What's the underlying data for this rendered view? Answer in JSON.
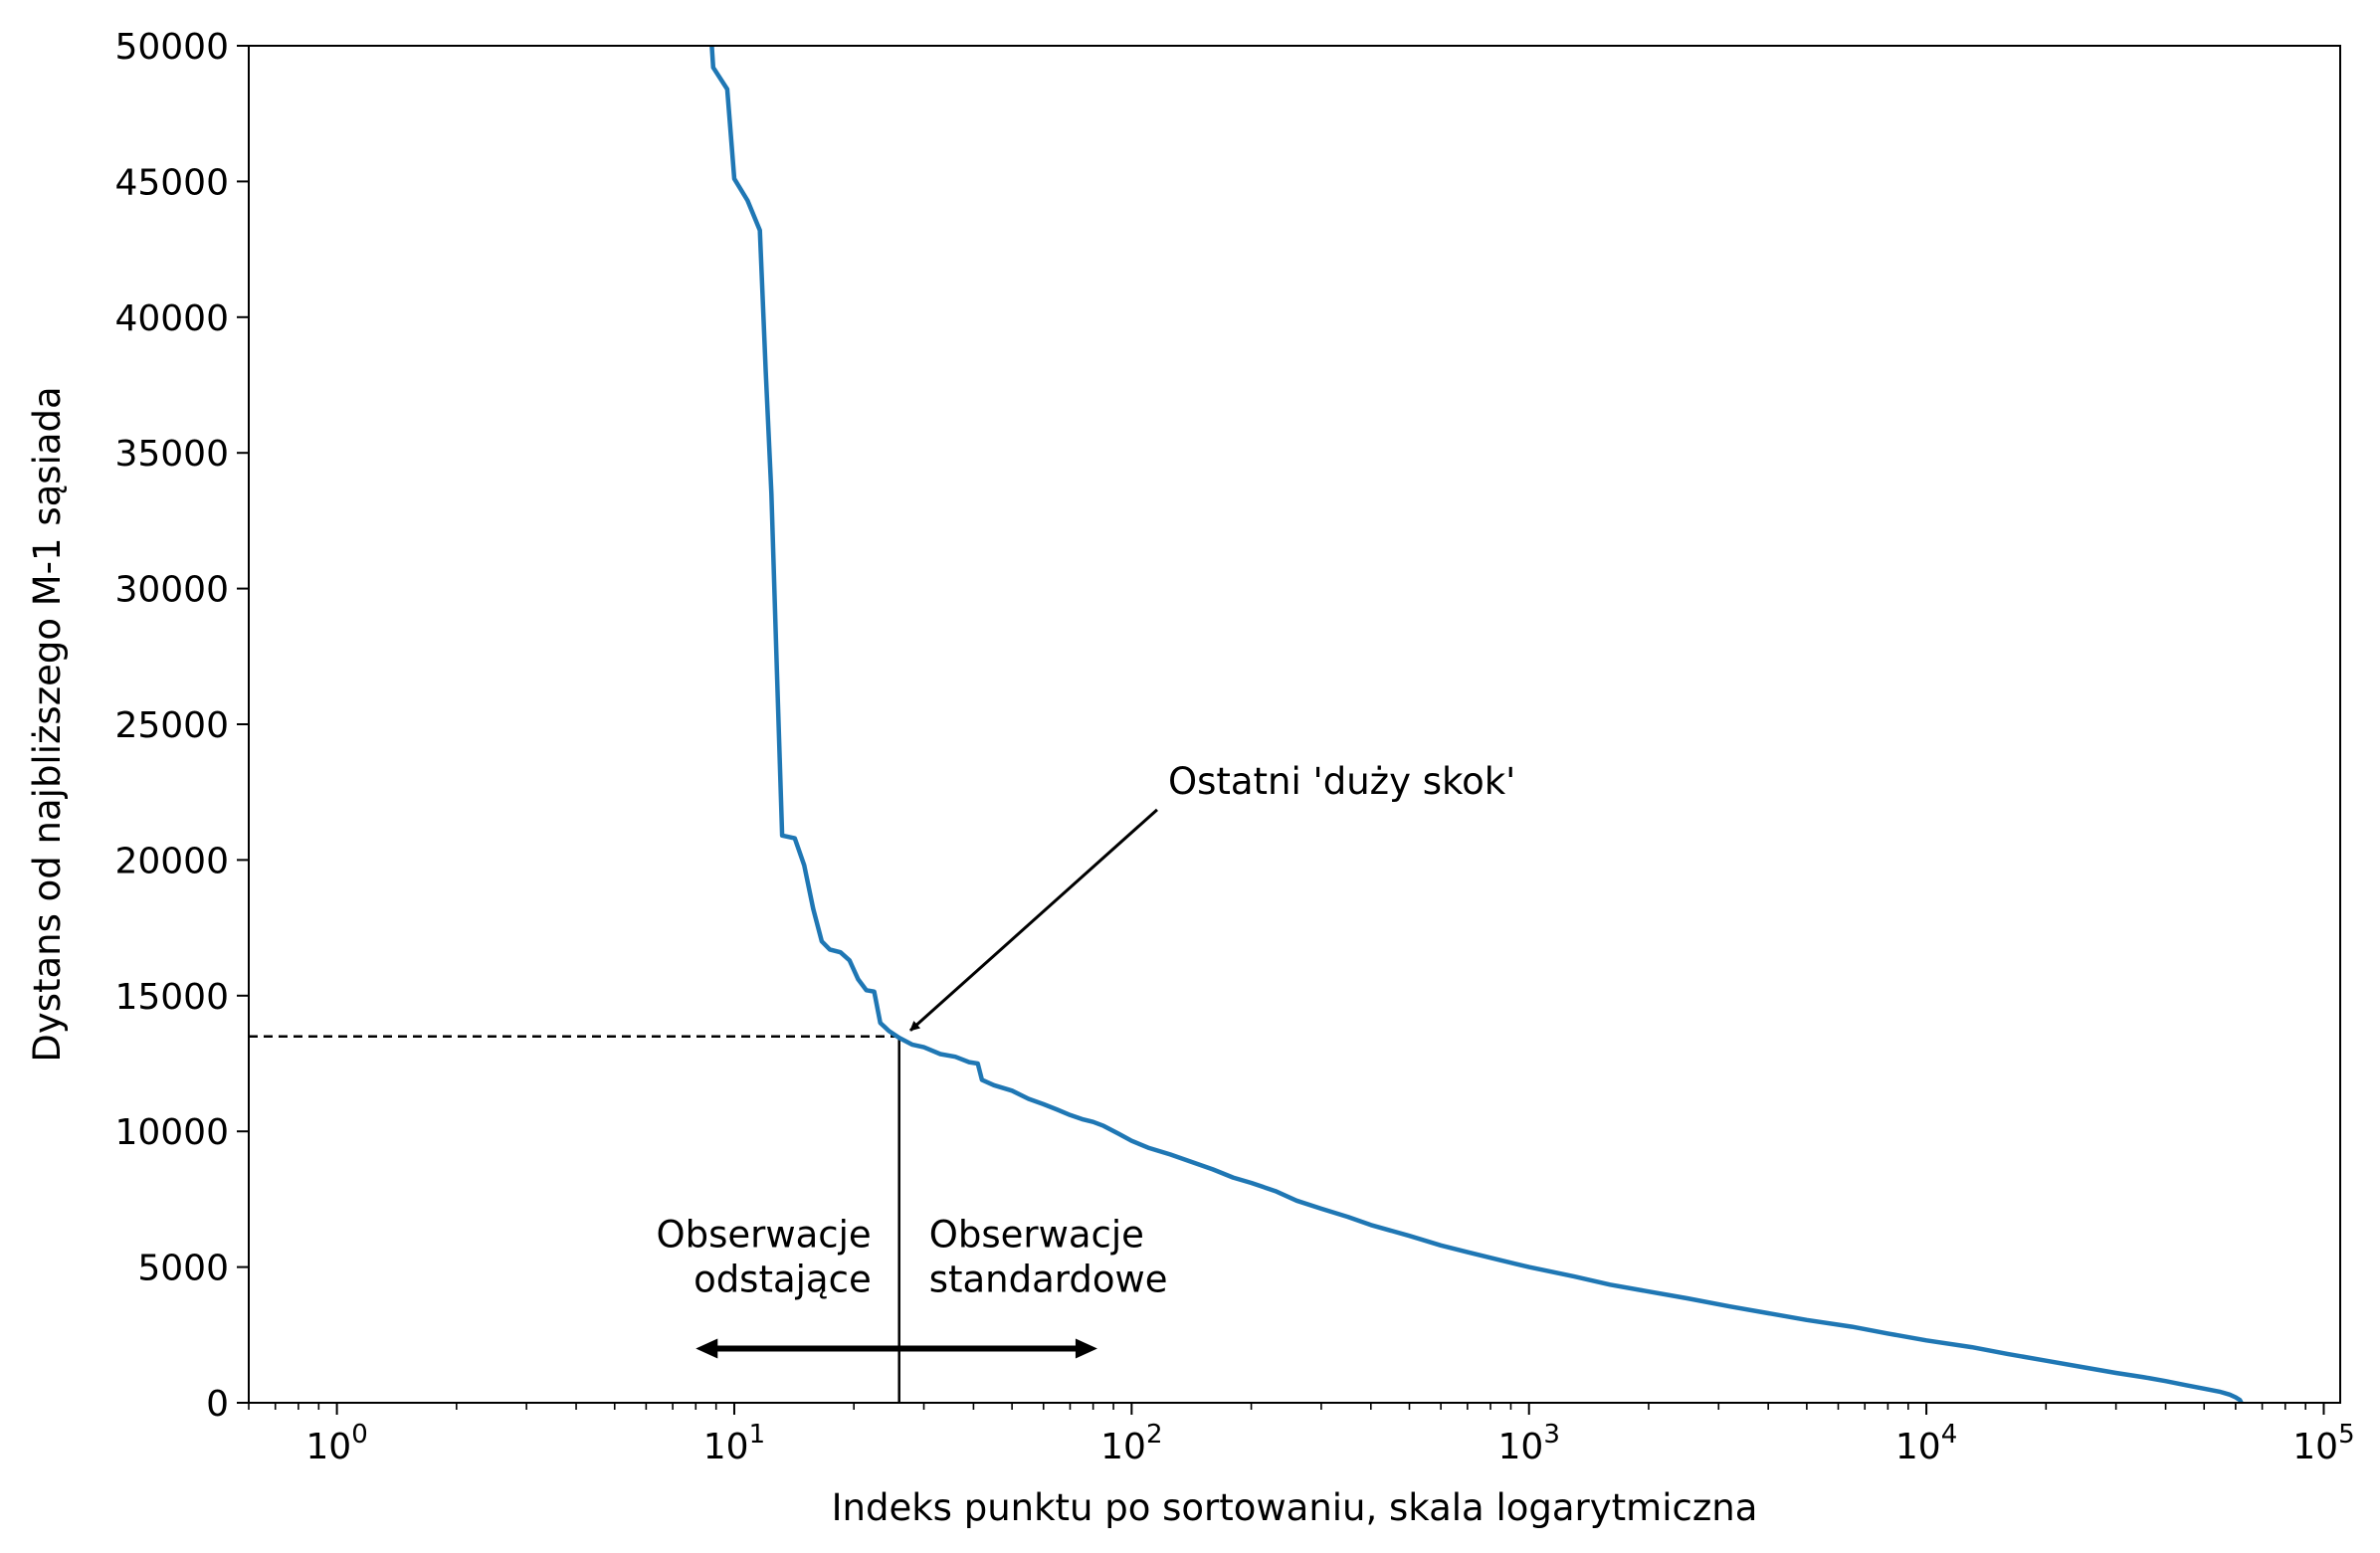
{
  "chart_data": {
    "type": "line",
    "xlabel": "Indeks punktu po sortowaniu, skala logarytmiczna",
    "ylabel": "Dystans od najbliższego M-1 sąsiada",
    "xscale": "log",
    "xlim": [
      0.6,
      110000
    ],
    "ylim": [
      0,
      50000
    ],
    "grid": false,
    "x_ticks": [
      {
        "value": 1,
        "base": "10",
        "exp": "0"
      },
      {
        "value": 10,
        "base": "10",
        "exp": "1"
      },
      {
        "value": 100,
        "base": "10",
        "exp": "2"
      },
      {
        "value": 1000,
        "base": "10",
        "exp": "3"
      },
      {
        "value": 10000,
        "base": "10",
        "exp": "4"
      },
      {
        "value": 100000,
        "base": "10",
        "exp": "5"
      }
    ],
    "y_ticks": [
      {
        "value": 0,
        "label": "0"
      },
      {
        "value": 5000,
        "label": "5000"
      },
      {
        "value": 10000,
        "label": "10000"
      },
      {
        "value": 15000,
        "label": "15000"
      },
      {
        "value": 20000,
        "label": "20000"
      },
      {
        "value": 25000,
        "label": "25000"
      },
      {
        "value": 30000,
        "label": "30000"
      },
      {
        "value": 35000,
        "label": "35000"
      },
      {
        "value": 40000,
        "label": "40000"
      },
      {
        "value": 45000,
        "label": "45000"
      },
      {
        "value": 50000,
        "label": "50000"
      }
    ],
    "series": [
      {
        "color": "#1f77b4",
        "points": [
          [
            8.6,
            52000
          ],
          [
            8.85,
            49200
          ],
          [
            9.6,
            48400
          ],
          [
            10.0,
            45100
          ],
          [
            10.8,
            44300
          ],
          [
            11.6,
            43200
          ],
          [
            12.0,
            38000
          ],
          [
            12.4,
            33500
          ],
          [
            12.8,
            27000
          ],
          [
            13.2,
            20900
          ],
          [
            14.2,
            20800
          ],
          [
            15.0,
            19800
          ],
          [
            15.8,
            18200
          ],
          [
            16.6,
            17000
          ],
          [
            17.4,
            16700
          ],
          [
            18.5,
            16600
          ],
          [
            19.5,
            16300
          ],
          [
            20.5,
            15600
          ],
          [
            21.5,
            15200
          ],
          [
            22.5,
            15150
          ],
          [
            23.3,
            14000
          ],
          [
            24.5,
            13700
          ],
          [
            26.0,
            13450
          ],
          [
            28.0,
            13200
          ],
          [
            30.0,
            13100
          ],
          [
            33.0,
            12850
          ],
          [
            36.0,
            12750
          ],
          [
            39.0,
            12550
          ],
          [
            41.0,
            12500
          ],
          [
            42.0,
            11900
          ],
          [
            45.0,
            11700
          ],
          [
            50.0,
            11500
          ],
          [
            55.0,
            11200
          ],
          [
            60.0,
            11000
          ],
          [
            65.0,
            10800
          ],
          [
            70.0,
            10600
          ],
          [
            75.0,
            10450
          ],
          [
            80.0,
            10350
          ],
          [
            85.0,
            10200
          ],
          [
            93.0,
            9900
          ],
          [
            100.0,
            9650
          ],
          [
            110.0,
            9400
          ],
          [
            125.0,
            9150
          ],
          [
            140.0,
            8900
          ],
          [
            160.0,
            8600
          ],
          [
            180.0,
            8300
          ],
          [
            200.0,
            8100
          ],
          [
            230.0,
            7800
          ],
          [
            260.0,
            7450
          ],
          [
            300.0,
            7150
          ],
          [
            350.0,
            6850
          ],
          [
            400.0,
            6550
          ],
          [
            500.0,
            6150
          ],
          [
            600.0,
            5800
          ],
          [
            700.0,
            5550
          ],
          [
            850.0,
            5250
          ],
          [
            1000.0,
            5000
          ],
          [
            1300.0,
            4650
          ],
          [
            1600.0,
            4350
          ],
          [
            2000.0,
            4100
          ],
          [
            2500.0,
            3850
          ],
          [
            3200.0,
            3550
          ],
          [
            4000.0,
            3300
          ],
          [
            5000.0,
            3050
          ],
          [
            6500.0,
            2800
          ],
          [
            8000.0,
            2550
          ],
          [
            10000.0,
            2300
          ],
          [
            13000.0,
            2050
          ],
          [
            16000.0,
            1800
          ],
          [
            20000.0,
            1550
          ],
          [
            25000.0,
            1300
          ],
          [
            30000.0,
            1100
          ],
          [
            35000.0,
            950
          ],
          [
            40000.0,
            800
          ],
          [
            45000.0,
            650
          ],
          [
            50000.0,
            520
          ],
          [
            55000.0,
            400
          ],
          [
            58000.0,
            300
          ],
          [
            60000.0,
            200
          ],
          [
            61500.0,
            100
          ],
          [
            62000.0,
            0
          ]
        ]
      }
    ],
    "threshold": {
      "x": 26,
      "y": 13500
    },
    "annotations": [
      {
        "text": "Ostatni 'duży skok'",
        "xy": [
          26.5,
          13500
        ],
        "xytext": [
          120,
          22000
        ]
      }
    ],
    "outliers_label": [
      "Obserwacje",
      "odstające"
    ],
    "standard_label": [
      "Obserwacje",
      "standardowe"
    ],
    "double_arrow": {
      "from": 8,
      "to": 82,
      "y": 2000
    }
  }
}
